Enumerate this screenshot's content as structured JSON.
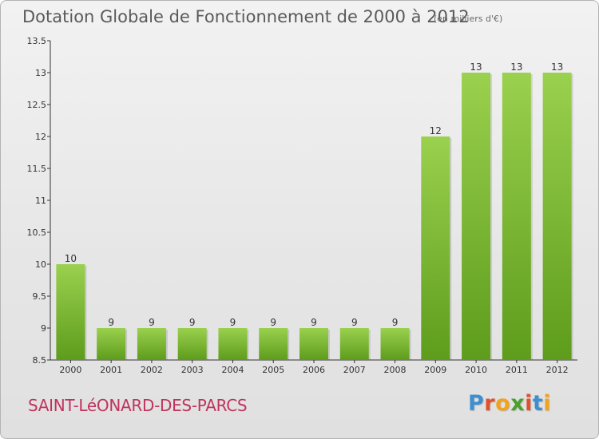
{
  "header": {
    "title": "Dotation Globale de Fonctionnement de 2000 à 2012",
    "unit": "(en milliers d'€)"
  },
  "footer": {
    "commune": "SAINT-LéONARD-DES-PARCS",
    "logo": [
      "P",
      "r",
      "o",
      "x",
      "i",
      "t",
      "i"
    ],
    "logo_colors": [
      "#3d8fd0",
      "#e2502b",
      "#f2a31b",
      "#4aa02c",
      "#e2502b",
      "#3d8fd0",
      "#f2a31b"
    ]
  },
  "colors": {
    "bar_top": "#9ad14e",
    "bar_bottom": "#5e9c1c",
    "axis": "#333333",
    "grid": "#cfcfcf"
  },
  "chart_data": {
    "type": "bar",
    "title": "Dotation Globale de Fonctionnement de 2000 à 2012",
    "categories": [
      "2000",
      "2001",
      "2002",
      "2003",
      "2004",
      "2005",
      "2006",
      "2007",
      "2008",
      "2009",
      "2010",
      "2011",
      "2012"
    ],
    "values": [
      10,
      9,
      9,
      9,
      9,
      9,
      9,
      9,
      9,
      12,
      13,
      13,
      13
    ],
    "ylim": [
      8.5,
      13.5
    ],
    "yticks": [
      8.5,
      9,
      9.5,
      10,
      10.5,
      11,
      11.5,
      12,
      12.5,
      13,
      13.5
    ],
    "ytick_labels": [
      "8.5",
      "9",
      "9.5",
      "10",
      "10.5",
      "11",
      "11.5",
      "12",
      "12.5",
      "13",
      "13.5"
    ],
    "grid": false,
    "legend": "none"
  }
}
